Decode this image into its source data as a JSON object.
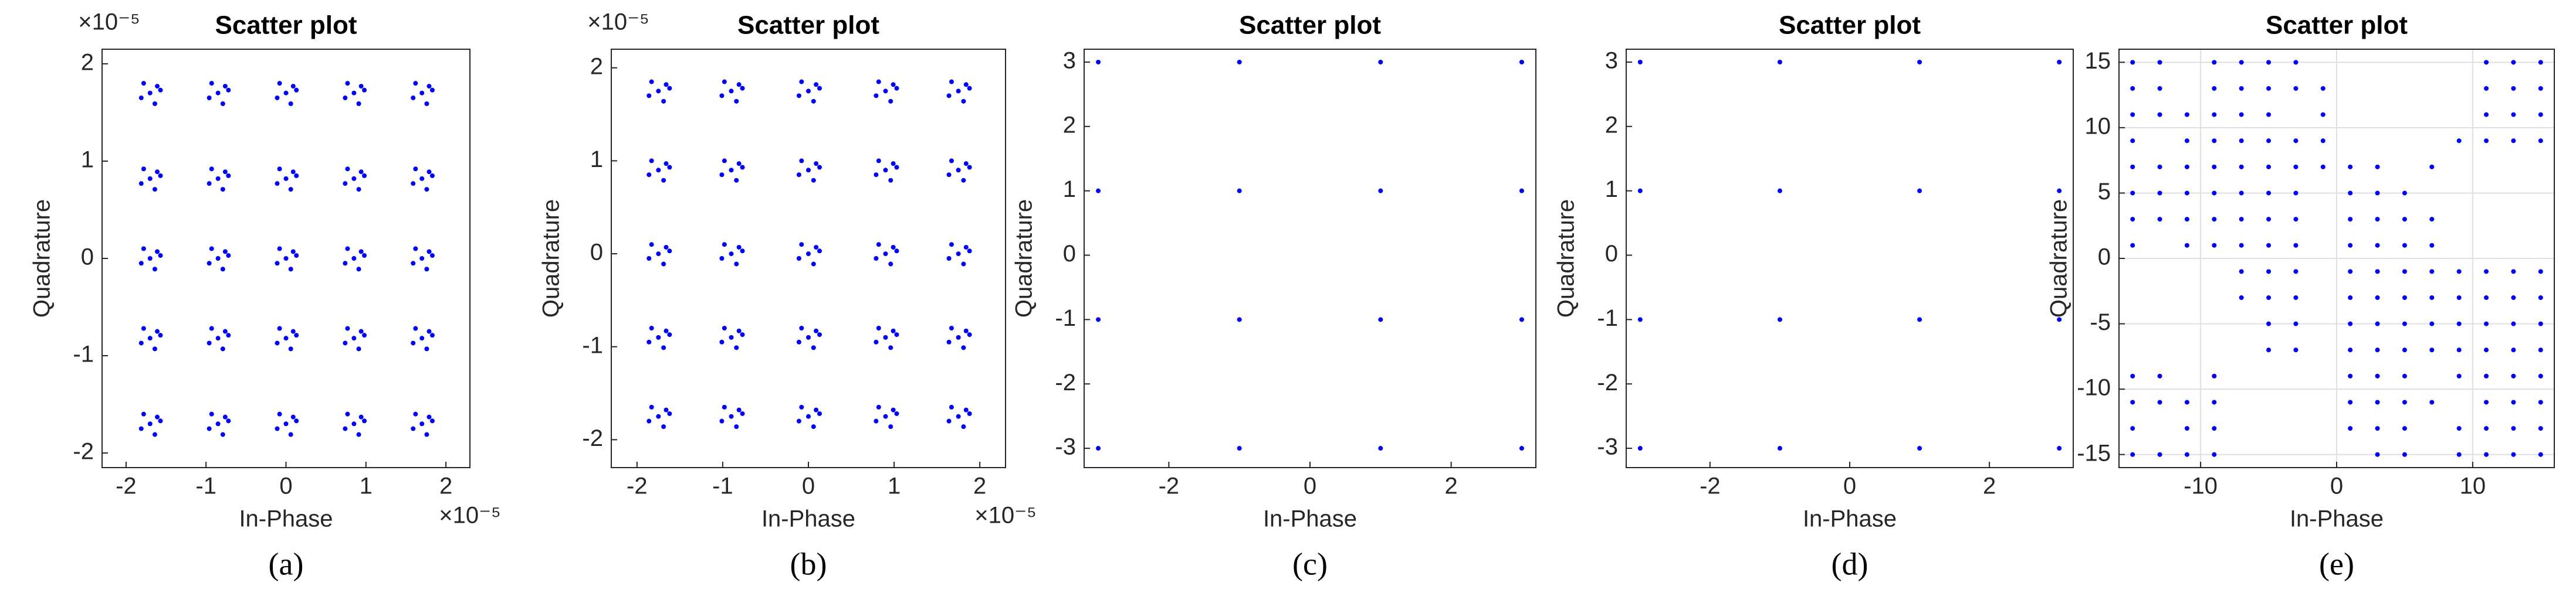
{
  "chart_data": [
    {
      "type": "scatter",
      "caption": "(a)",
      "title": "Scatter plot",
      "x_label": "In-Phase",
      "y_label": "Quadrature",
      "x_exponent": "×10⁻⁵",
      "y_exponent": "×10⁻⁵",
      "color": "#0000ff",
      "grid": false,
      "xlim": [
        -2.3,
        2.3
      ],
      "ylim": [
        -2.15,
        2.15
      ],
      "xticks": [
        -2,
        -1,
        0,
        1,
        2
      ],
      "yticks": [
        -2,
        -1,
        0,
        1,
        2
      ],
      "x": [
        -1.7,
        -1.61,
        -1.78,
        -1.64,
        -1.81,
        -1.57,
        -0.85,
        -0.76,
        -0.93,
        -0.79,
        -0.96,
        -0.72,
        0,
        0.09,
        -0.08,
        0.06,
        -0.11,
        0.13,
        0.85,
        0.94,
        0.77,
        0.91,
        0.74,
        0.98,
        1.7,
        1.79,
        1.62,
        1.76,
        1.59,
        1.83,
        -1.7,
        -1.61,
        -1.78,
        -1.64,
        -1.81,
        -1.57,
        -0.85,
        -0.76,
        -0.93,
        -0.79,
        -0.96,
        -0.72,
        0,
        0.09,
        -0.08,
        0.06,
        -0.11,
        0.13,
        0.85,
        0.94,
        0.77,
        0.91,
        0.74,
        0.98,
        1.7,
        1.79,
        1.62,
        1.76,
        1.59,
        1.83,
        -1.7,
        -1.61,
        -1.78,
        -1.64,
        -1.81,
        -1.57,
        -0.85,
        -0.76,
        -0.93,
        -0.79,
        -0.96,
        -0.72,
        0,
        0.09,
        -0.08,
        0.06,
        -0.11,
        0.13,
        0.85,
        0.94,
        0.77,
        0.91,
        0.74,
        0.98,
        1.7,
        1.79,
        1.62,
        1.76,
        1.59,
        1.83,
        -1.7,
        -1.61,
        -1.78,
        -1.64,
        -1.81,
        -1.57,
        -0.85,
        -0.76,
        -0.93,
        -0.79,
        -0.96,
        -0.72,
        0,
        0.09,
        -0.08,
        0.06,
        -0.11,
        0.13,
        0.85,
        0.94,
        0.77,
        0.91,
        0.74,
        0.98,
        1.7,
        1.79,
        1.62,
        1.76,
        1.59,
        1.83,
        -1.7,
        -1.61,
        -1.78,
        -1.64,
        -1.81,
        -1.57,
        -0.85,
        -0.76,
        -0.93,
        -0.79,
        -0.96,
        -0.72,
        0,
        0.09,
        -0.08,
        0.06,
        -0.11,
        0.13,
        0.85,
        0.94,
        0.77,
        0.91,
        0.74,
        0.98,
        1.7,
        1.79,
        1.62,
        1.76,
        1.59,
        1.83
      ],
      "values": [
        1.7,
        1.77,
        1.8,
        1.59,
        1.65,
        1.73,
        1.7,
        1.77,
        1.8,
        1.59,
        1.65,
        1.73,
        1.7,
        1.77,
        1.8,
        1.59,
        1.65,
        1.73,
        1.7,
        1.77,
        1.8,
        1.59,
        1.65,
        1.73,
        1.7,
        1.77,
        1.8,
        1.59,
        1.65,
        1.73,
        0.82,
        0.89,
        0.92,
        0.71,
        0.77,
        0.85,
        0.82,
        0.89,
        0.92,
        0.71,
        0.77,
        0.85,
        0.82,
        0.89,
        0.92,
        0.71,
        0.77,
        0.85,
        0.82,
        0.89,
        0.92,
        0.71,
        0.77,
        0.85,
        0.82,
        0.89,
        0.92,
        0.71,
        0.77,
        0.85,
        0,
        0.07,
        0.1,
        -0.11,
        -0.05,
        0.03,
        0,
        0.07,
        0.1,
        -0.11,
        -0.05,
        0.03,
        0,
        0.07,
        0.1,
        -0.11,
        -0.05,
        0.03,
        0,
        0.07,
        0.1,
        -0.11,
        -0.05,
        0.03,
        0,
        0.07,
        0.1,
        -0.11,
        -0.05,
        0.03,
        -0.82,
        -0.75,
        -0.72,
        -0.93,
        -0.87,
        -0.79,
        -0.82,
        -0.75,
        -0.72,
        -0.93,
        -0.87,
        -0.79,
        -0.82,
        -0.75,
        -0.72,
        -0.93,
        -0.87,
        -0.79,
        -0.82,
        -0.75,
        -0.72,
        -0.93,
        -0.87,
        -0.79,
        -0.82,
        -0.75,
        -0.72,
        -0.93,
        -0.87,
        -0.79,
        -1.7,
        -1.63,
        -1.6,
        -1.81,
        -1.75,
        -1.67,
        -1.7,
        -1.63,
        -1.6,
        -1.81,
        -1.75,
        -1.67,
        -1.7,
        -1.63,
        -1.6,
        -1.81,
        -1.75,
        -1.67,
        -1.7,
        -1.63,
        -1.6,
        -1.81,
        -1.75,
        -1.67,
        -1.7,
        -1.63,
        -1.6,
        -1.81,
        -1.75,
        -1.67
      ]
    },
    {
      "type": "scatter",
      "caption": "(b)",
      "title": "Scatter plot",
      "x_label": "In-Phase",
      "y_label": "Quadrature",
      "x_exponent": "×10⁻⁵",
      "y_exponent": "×10⁻⁵",
      "color": "#0000ff",
      "grid": false,
      "xlim": [
        -2.3,
        2.3
      ],
      "ylim": [
        -2.3,
        2.2
      ],
      "xticks": [
        -2,
        -1,
        0,
        1,
        2
      ],
      "yticks": [
        -2,
        -1,
        0,
        1,
        2
      ],
      "x": [
        -1.75,
        -1.66,
        -1.83,
        -1.69,
        -1.86,
        -1.62,
        -0.9,
        -0.81,
        -0.98,
        -0.84,
        -1.01,
        -0.77,
        0,
        0.09,
        -0.08,
        0.06,
        -0.11,
        0.13,
        0.9,
        0.99,
        0.82,
        0.96,
        0.79,
        1.03,
        1.75,
        1.84,
        1.67,
        1.81,
        1.64,
        1.88,
        -1.75,
        -1.66,
        -1.83,
        -1.69,
        -1.86,
        -1.62,
        -0.9,
        -0.81,
        -0.98,
        -0.84,
        -1.01,
        -0.77,
        0,
        0.09,
        -0.08,
        0.06,
        -0.11,
        0.13,
        0.9,
        0.99,
        0.82,
        0.96,
        0.79,
        1.03,
        1.75,
        1.84,
        1.67,
        1.81,
        1.64,
        1.88,
        -1.75,
        -1.66,
        -1.83,
        -1.69,
        -1.86,
        -1.62,
        -0.9,
        -0.81,
        -0.98,
        -0.84,
        -1.01,
        -0.77,
        0,
        0.09,
        -0.08,
        0.06,
        -0.11,
        0.13,
        0.9,
        0.99,
        0.82,
        0.96,
        0.79,
        1.03,
        1.75,
        1.84,
        1.67,
        1.81,
        1.64,
        1.88,
        -1.75,
        -1.66,
        -1.83,
        -1.69,
        -1.86,
        -1.62,
        -0.9,
        -0.81,
        -0.98,
        -0.84,
        -1.01,
        -0.77,
        0,
        0.09,
        -0.08,
        0.06,
        -0.11,
        0.13,
        0.9,
        0.99,
        0.82,
        0.96,
        0.79,
        1.03,
        1.75,
        1.84,
        1.67,
        1.81,
        1.64,
        1.88,
        -1.75,
        -1.66,
        -1.83,
        -1.69,
        -1.86,
        -1.62,
        -0.9,
        -0.81,
        -0.98,
        -0.84,
        -1.01,
        -0.77,
        0,
        0.09,
        -0.08,
        0.06,
        -0.11,
        0.13,
        0.9,
        0.99,
        0.82,
        0.96,
        0.79,
        1.03,
        1.75,
        1.84,
        1.67,
        1.81,
        1.64,
        1.88
      ],
      "values": [
        1.75,
        1.82,
        1.85,
        1.64,
        1.7,
        1.78,
        1.75,
        1.82,
        1.85,
        1.64,
        1.7,
        1.78,
        1.75,
        1.82,
        1.85,
        1.64,
        1.7,
        1.78,
        1.75,
        1.82,
        1.85,
        1.64,
        1.7,
        1.78,
        1.75,
        1.82,
        1.85,
        1.64,
        1.7,
        1.78,
        0.9,
        0.97,
        1,
        0.79,
        0.85,
        0.93,
        0.9,
        0.97,
        1,
        0.79,
        0.85,
        0.93,
        0.9,
        0.97,
        1,
        0.79,
        0.85,
        0.93,
        0.9,
        0.97,
        1,
        0.79,
        0.85,
        0.93,
        0.9,
        0.97,
        1,
        0.79,
        0.85,
        0.93,
        0,
        0.07,
        0.1,
        -0.11,
        -0.05,
        0.03,
        0,
        0.07,
        0.1,
        -0.11,
        -0.05,
        0.03,
        0,
        0.07,
        0.1,
        -0.11,
        -0.05,
        0.03,
        0,
        0.07,
        0.1,
        -0.11,
        -0.05,
        0.03,
        0,
        0.07,
        0.1,
        -0.11,
        -0.05,
        0.03,
        -0.9,
        -0.83,
        -0.8,
        -1.01,
        -0.95,
        -0.87,
        -0.9,
        -0.83,
        -0.8,
        -1.01,
        -0.95,
        -0.87,
        -0.9,
        -0.83,
        -0.8,
        -1.01,
        -0.95,
        -0.87,
        -0.9,
        -0.83,
        -0.8,
        -1.01,
        -0.95,
        -0.87,
        -0.9,
        -0.83,
        -0.8,
        -1.01,
        -0.95,
        -0.87,
        -1.75,
        -1.68,
        -1.65,
        -1.86,
        -1.8,
        -1.72,
        -1.75,
        -1.68,
        -1.65,
        -1.86,
        -1.8,
        -1.72,
        -1.75,
        -1.68,
        -1.65,
        -1.86,
        -1.8,
        -1.72,
        -1.75,
        -1.68,
        -1.65,
        -1.86,
        -1.8,
        -1.72,
        -1.75,
        -1.68,
        -1.65,
        -1.86,
        -1.8,
        -1.72
      ]
    },
    {
      "type": "scatter",
      "caption": "(c)",
      "title": "Scatter plot",
      "x_label": "In-Phase",
      "y_label": "Quadrature",
      "color": "#0000ff",
      "grid": false,
      "xlim": [
        -3.2,
        3.2
      ],
      "ylim": [
        -3.3,
        3.2
      ],
      "xticks": [
        -2,
        0,
        2
      ],
      "yticks": [
        -3,
        -2,
        -1,
        0,
        1,
        2,
        3
      ],
      "x": [
        -3,
        -1,
        1,
        3,
        -3,
        -1,
        1,
        3,
        -3,
        -1,
        1,
        3,
        -3,
        -1,
        1,
        3
      ],
      "values": [
        3,
        3,
        3,
        3,
        1,
        1,
        1,
        1,
        -1,
        -1,
        -1,
        -1,
        -3,
        -3,
        -3,
        -3
      ]
    },
    {
      "type": "scatter",
      "caption": "(d)",
      "title": "Scatter plot",
      "x_label": "In-Phase",
      "y_label": "Quadrature",
      "color": "#0000ff",
      "grid": false,
      "xlim": [
        -3.2,
        3.2
      ],
      "ylim": [
        -3.3,
        3.2
      ],
      "xticks": [
        -2,
        0,
        2
      ],
      "yticks": [
        -3,
        -2,
        -1,
        0,
        1,
        2,
        3
      ],
      "x": [
        -3,
        -1,
        1,
        3,
        -3,
        -1,
        1,
        3,
        -3,
        -1,
        1,
        3,
        -3,
        -1,
        1,
        3
      ],
      "values": [
        3,
        3,
        3,
        3,
        1,
        1,
        1,
        1,
        -1,
        -1,
        -1,
        -1,
        -3,
        -3,
        -3,
        -3
      ]
    },
    {
      "type": "scatter",
      "caption": "(e)",
      "title": "Scatter plot",
      "x_label": "In-Phase",
      "y_label": "Quadrature",
      "color": "#0000ff",
      "grid": true,
      "xlim": [
        -16,
        16
      ],
      "ylim": [
        -16,
        16
      ],
      "xticks": [
        -10,
        0,
        10
      ],
      "yticks": [
        -15,
        -10,
        -5,
        0,
        5,
        10,
        15
      ],
      "x": [
        -15,
        -13,
        -9,
        -7,
        -5,
        -3,
        11,
        13,
        15,
        -15,
        -13,
        -9,
        -7,
        -5,
        -3,
        -1,
        11,
        13,
        15,
        -15,
        -13,
        -11,
        -9,
        -7,
        -5,
        -1,
        11,
        13,
        15,
        -15,
        -11,
        -9,
        -7,
        -5,
        -3,
        -1,
        9,
        11,
        13,
        15,
        -15,
        -13,
        -11,
        -9,
        -7,
        -5,
        -3,
        -1,
        1,
        3,
        7,
        -15,
        -13,
        -11,
        -9,
        -7,
        -5,
        -3,
        1,
        3,
        5,
        -15,
        -13,
        -11,
        -9,
        -7,
        -5,
        -3,
        1,
        3,
        5,
        7,
        -15,
        -11,
        -9,
        -7,
        -5,
        -3,
        1,
        3,
        5,
        7,
        -7,
        -5,
        -3,
        1,
        3,
        5,
        7,
        9,
        11,
        13,
        15,
        -7,
        -5,
        -3,
        1,
        3,
        5,
        7,
        9,
        11,
        13,
        15,
        -5,
        -3,
        1,
        3,
        5,
        7,
        9,
        11,
        13,
        15,
        -5,
        -3,
        1,
        3,
        5,
        7,
        9,
        11,
        13,
        15,
        -15,
        -13,
        -9,
        1,
        3,
        5,
        9,
        11,
        13,
        15,
        -15,
        -13,
        -11,
        -9,
        1,
        3,
        5,
        7,
        11,
        13,
        15,
        -15,
        -11,
        -9,
        1,
        3,
        5,
        9,
        11,
        13,
        15,
        -15,
        -13,
        -11,
        -9,
        3,
        5,
        9,
        11,
        13,
        15
      ],
      "values": [
        15,
        15,
        15,
        15,
        15,
        15,
        15,
        15,
        15,
        13,
        13,
        13,
        13,
        13,
        13,
        13,
        13,
        13,
        13,
        11,
        11,
        11,
        11,
        11,
        11,
        11,
        11,
        11,
        11,
        9,
        9,
        9,
        9,
        9,
        9,
        9,
        9,
        9,
        9,
        9,
        7,
        7,
        7,
        7,
        7,
        7,
        7,
        7,
        7,
        7,
        7,
        5,
        5,
        5,
        5,
        5,
        5,
        5,
        5,
        5,
        5,
        3,
        3,
        3,
        3,
        3,
        3,
        3,
        3,
        3,
        3,
        3,
        1,
        1,
        1,
        1,
        1,
        1,
        1,
        1,
        1,
        1,
        -1,
        -1,
        -1,
        -1,
        -1,
        -1,
        -1,
        -1,
        -1,
        -1,
        -1,
        -3,
        -3,
        -3,
        -3,
        -3,
        -3,
        -3,
        -3,
        -3,
        -3,
        -3,
        -5,
        -5,
        -5,
        -5,
        -5,
        -5,
        -5,
        -5,
        -5,
        -5,
        -7,
        -7,
        -7,
        -7,
        -7,
        -7,
        -7,
        -7,
        -7,
        -7,
        -9,
        -9,
        -9,
        -9,
        -9,
        -9,
        -9,
        -9,
        -9,
        -9,
        -11,
        -11,
        -11,
        -11,
        -11,
        -11,
        -11,
        -11,
        -11,
        -11,
        -11,
        -13,
        -13,
        -13,
        -13,
        -13,
        -13,
        -13,
        -13,
        -13,
        -13,
        -15,
        -15,
        -15,
        -15,
        -15,
        -15,
        -15,
        -15,
        -15,
        -15
      ]
    }
  ]
}
